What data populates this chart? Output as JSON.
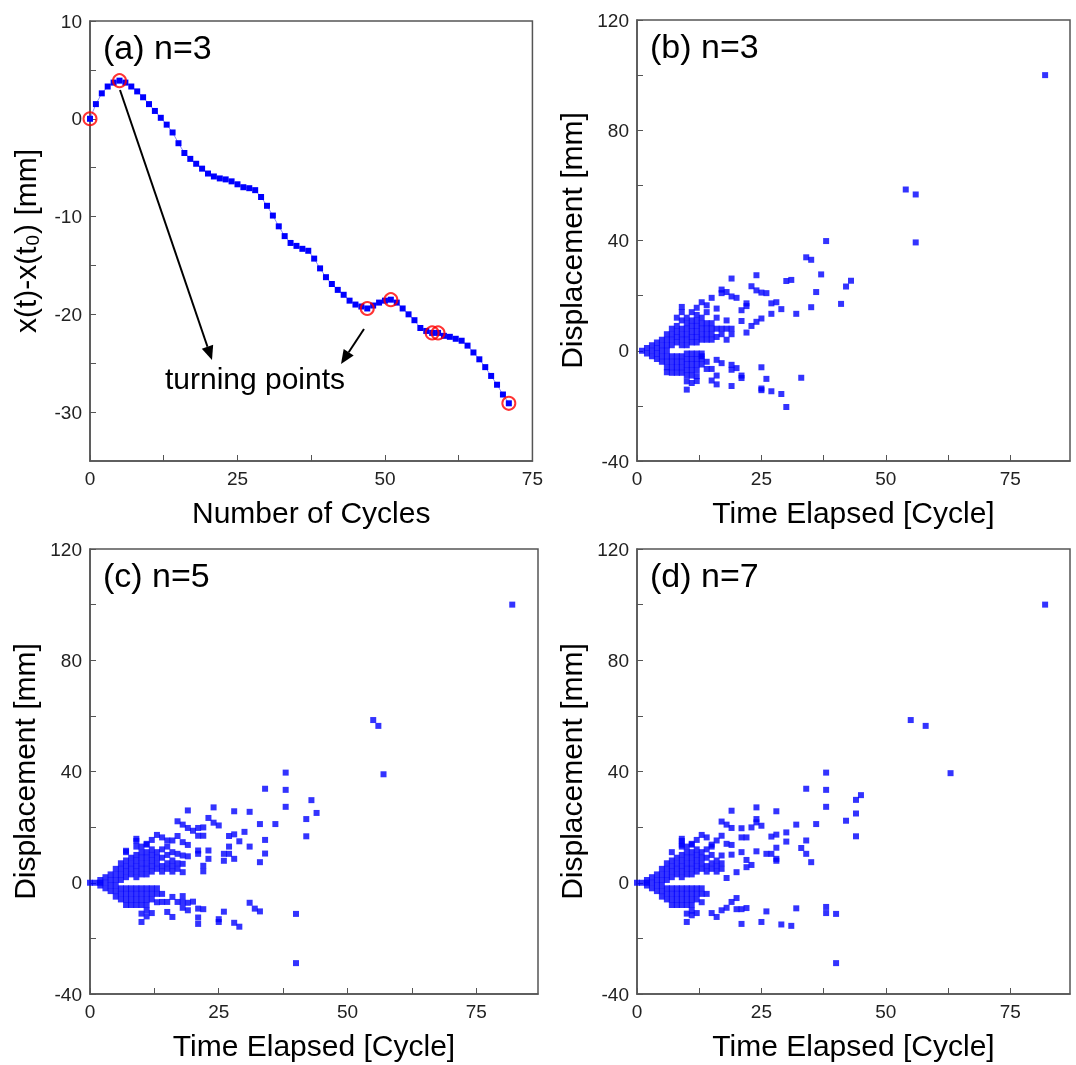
{
  "chart_data": [
    {
      "type": "line",
      "title": "(a) n=3",
      "xlabel": "Number of Cycles",
      "ylabel": "x(t)-x(t₀) [mm]",
      "xlim": [
        0,
        75
      ],
      "xticks": [
        0,
        {
          "value": 12.5,
          "label": null
        },
        25,
        {
          "value": 37.5,
          "label": null
        },
        50,
        {
          "value": 62.5,
          "label": null
        },
        75
      ],
      "ylim": [
        -35,
        10
      ],
      "yticks": [
        -30,
        {
          "value": -25,
          "label": null
        },
        -20,
        {
          "value": -15,
          "label": null
        },
        -10,
        {
          "value": -5,
          "label": null
        },
        0,
        {
          "value": 5,
          "label": null
        },
        10
      ],
      "marker": "square",
      "annotations": [
        "turning points"
      ],
      "series": [
        {
          "color": "#0000ff",
          "x": [
            0,
            1,
            2,
            3,
            4,
            5,
            6,
            7,
            8,
            9,
            10,
            11,
            12,
            13,
            14,
            15,
            16,
            17,
            18,
            19,
            20,
            21,
            22,
            23,
            24,
            25,
            26,
            27,
            28,
            29,
            30,
            31,
            32,
            33,
            34,
            35,
            36,
            37,
            38,
            39,
            40,
            41,
            42,
            43,
            44,
            45,
            46,
            47,
            48,
            49,
            50,
            51,
            52,
            53,
            54,
            55,
            56,
            57,
            58,
            59,
            60,
            61,
            62,
            63,
            64,
            65,
            66,
            67,
            68,
            69,
            70,
            71
          ],
          "values": [
            0,
            1.5,
            2.6,
            3.3,
            3.7,
            3.9,
            3.7,
            3.3,
            2.8,
            2.2,
            1.5,
            0.8,
            0.1,
            -0.6,
            -1.4,
            -2.5,
            -3.5,
            -4.1,
            -4.6,
            -5.1,
            -5.6,
            -5.9,
            -6.1,
            -6.2,
            -6.4,
            -6.7,
            -7,
            -7.1,
            -7.3,
            -8,
            -8.9,
            -9.9,
            -11,
            -12,
            -12.7,
            -13,
            -13.3,
            -13.5,
            -14.3,
            -15.3,
            -16.2,
            -16.9,
            -17.5,
            -18,
            -18.6,
            -19,
            -19.2,
            -19.4,
            -19.1,
            -18.8,
            -18.6,
            -18.5,
            -18.8,
            -19.4,
            -20,
            -20.6,
            -21.4,
            -21.7,
            -21.9,
            -21.9,
            -22.2,
            -22.3,
            -22.5,
            -22.7,
            -23.2,
            -23.9,
            -24.6,
            -25.4,
            -26.3,
            -27.2,
            -28.2,
            -29.1
          ]
        },
        {
          "type": "scatter",
          "color": "#ff0000",
          "marker": "circle",
          "x": [
            0,
            5,
            47,
            51,
            58,
            59,
            71
          ],
          "values": [
            0,
            3.9,
            -19.4,
            -18.5,
            -21.9,
            -21.9,
            -29.1
          ]
        }
      ]
    },
    {
      "type": "scatter",
      "title": "(b) n=3",
      "xlabel": "Time Elapsed [Cycle]",
      "ylabel": "Displacement [mm]",
      "xlim": [
        0,
        87
      ],
      "xticks": [
        0,
        {
          "value": 12.5,
          "label": null
        },
        25,
        {
          "value": 37.5,
          "label": null
        },
        50,
        {
          "value": 62.5,
          "label": null
        },
        75
      ],
      "ylim": [
        -40,
        120
      ],
      "yticks": [
        -40,
        {
          "value": -20,
          "label": null
        },
        0,
        {
          "value": 20,
          "label": null
        },
        40,
        {
          "value": 60,
          "label": null
        },
        80,
        {
          "value": 100,
          "label": null
        },
        120
      ],
      "marker": "square",
      "series": [
        {
          "color": "#0000ff",
          "x": [
            1,
            2,
            2,
            3,
            3,
            3,
            4,
            4,
            4,
            4,
            5,
            5,
            5,
            5,
            5,
            6,
            6,
            6,
            6,
            6,
            6,
            6,
            7,
            7,
            7,
            7,
            7,
            7,
            7,
            7,
            8,
            8,
            8,
            8,
            8,
            8,
            8,
            8,
            8,
            9,
            9,
            9,
            9,
            9,
            9,
            9,
            9,
            9,
            9,
            10,
            10,
            10,
            10,
            10,
            10,
            10,
            10,
            10,
            10,
            10,
            11,
            11,
            11,
            11,
            11,
            11,
            11,
            11,
            11,
            11,
            11,
            12,
            12,
            12,
            12,
            12,
            12,
            12,
            12,
            12,
            12,
            13,
            13,
            13,
            13,
            13,
            13,
            13,
            13,
            14,
            14,
            14,
            14,
            14,
            14,
            15,
            15,
            15,
            15,
            16,
            16,
            16,
            17,
            17,
            18,
            18,
            18,
            19,
            19,
            82,
            54,
            56,
            56,
            38,
            34,
            35,
            37,
            43,
            42,
            41,
            36,
            35,
            30,
            31,
            32,
            24,
            19,
            23,
            26,
            25,
            24,
            27,
            28,
            29,
            27,
            25,
            24,
            23,
            22,
            21,
            21,
            22,
            22,
            20,
            19,
            18,
            17,
            17,
            16,
            15,
            14,
            13,
            12,
            9,
            30,
            29,
            27,
            25,
            25,
            26,
            25,
            33,
            19,
            21,
            21,
            20,
            19,
            19,
            17,
            16,
            16,
            16,
            15,
            15,
            14,
            13,
            12,
            12,
            11,
            10,
            10,
            6
          ],
          "values": [
            0,
            1,
            -1,
            2,
            0,
            -2,
            3,
            1,
            -1,
            -3,
            4,
            2,
            0,
            -2,
            -4,
            6,
            4,
            2,
            0,
            -2,
            -4,
            -6,
            8,
            6,
            4,
            2,
            -2,
            -4,
            -6,
            -8,
            12,
            9,
            7,
            5,
            3,
            -2,
            -4,
            -6,
            -8,
            14,
            11,
            8,
            6,
            4,
            2,
            -2,
            -4,
            -6,
            -8,
            12,
            10,
            8,
            6,
            4,
            2,
            -1,
            -3,
            -5,
            -7,
            -9,
            14,
            11,
            9,
            7,
            5,
            3,
            -1,
            -3,
            -5,
            -7,
            -9,
            13,
            11,
            9,
            7,
            5,
            3,
            -1,
            -3,
            -5,
            -7,
            12,
            10,
            8,
            6,
            4,
            -1,
            -3,
            -5,
            14,
            10,
            8,
            6,
            4,
            -4,
            10,
            8,
            6,
            4,
            12,
            8,
            5,
            8,
            6,
            11,
            8,
            4,
            8,
            6,
            100,
            58.5,
            56.7,
            39.3,
            39.8,
            33.9,
            33,
            27.7,
            25.4,
            23.3,
            17,
            21.3,
            15.8,
            25.3,
            25.7,
            13.4,
            27.4,
            26.2,
            23.4,
            20.9,
            21.1,
            21.9,
            17.2,
            17.6,
            15.1,
            13.4,
            11.7,
            10.5,
            9,
            6.6,
            10.8,
            14.7,
            17.2,
            16.2,
            19.2,
            19.7,
            21.3,
            22.2,
            20.9,
            15.3,
            19.2,
            16.5,
            17.6,
            15.6,
            15.9,
            -20.4,
            -15.7,
            -14.7,
            -13.7,
            -14.3,
            -10.2,
            -6,
            -9.8,
            -12.8,
            -9,
            -9.9,
            -6.3,
            -5.1,
            -6.9,
            -4.5,
            -3.3,
            -12.2,
            -9,
            -6.6,
            -10.8,
            -6.6,
            -2,
            -9.2,
            -11,
            -11.7,
            -14.1,
            -11.1,
            -7.8
          ]
        }
      ]
    },
    {
      "type": "scatter",
      "title": "(c) n=5",
      "xlabel": "Time Elapsed [Cycle]",
      "ylabel": "Displacement [mm]",
      "xlim": [
        0,
        87
      ],
      "xticks": [
        0,
        {
          "value": 12.5,
          "label": null
        },
        25,
        {
          "value": 37.5,
          "label": null
        },
        50,
        {
          "value": 62.5,
          "label": null
        },
        75
      ],
      "ylim": [
        -40,
        120
      ],
      "yticks": [
        -40,
        {
          "value": -20,
          "label": null
        },
        0,
        {
          "value": 20,
          "label": null
        },
        40,
        {
          "value": 60,
          "label": null
        },
        80,
        {
          "value": 100,
          "label": null
        },
        120
      ],
      "marker": "square",
      "series": [
        {
          "color": "#0000ff",
          "x": [
            0,
            1,
            2,
            2,
            2,
            3,
            3,
            3,
            4,
            4,
            4,
            4,
            5,
            5,
            5,
            5,
            5,
            5,
            6,
            6,
            6,
            6,
            6,
            6,
            6,
            7,
            7,
            7,
            7,
            7,
            7,
            7,
            7,
            7,
            8,
            8,
            8,
            8,
            8,
            8,
            8,
            8,
            9,
            9,
            9,
            9,
            9,
            9,
            9,
            9,
            9,
            9,
            9,
            10,
            10,
            10,
            10,
            10,
            10,
            10,
            10,
            10,
            10,
            11,
            11,
            11,
            11,
            11,
            11,
            11,
            11,
            11,
            11,
            11,
            12,
            12,
            12,
            12,
            12,
            12,
            12,
            12,
            13,
            13,
            13,
            13,
            13,
            13,
            13,
            14,
            14,
            14,
            14,
            14,
            15,
            15,
            15,
            15,
            16,
            16,
            16,
            17,
            17,
            82,
            55,
            56,
            57,
            38,
            34,
            38,
            38,
            43,
            44,
            42,
            42,
            36,
            33,
            34,
            34,
            33,
            31,
            31,
            30,
            28,
            28,
            27,
            29,
            27,
            27,
            26,
            26,
            28,
            24,
            23,
            24,
            25,
            19,
            17,
            18,
            19,
            20,
            21,
            22,
            21,
            22,
            23,
            23,
            21,
            21,
            22,
            22,
            17,
            18,
            19,
            19,
            18,
            17,
            18,
            18,
            16,
            16,
            15,
            14,
            13,
            12,
            11,
            9,
            7,
            40,
            40,
            29,
            28,
            25,
            25,
            26,
            31,
            32,
            33,
            21,
            21,
            21,
            22,
            19,
            20,
            19,
            18,
            18,
            18,
            17,
            16,
            16,
            15,
            15,
            14,
            12,
            11,
            10,
            10
          ],
          "values": [
            0,
            0,
            1,
            0,
            -1,
            2,
            0,
            -2,
            3,
            1,
            -1,
            -3,
            5,
            3,
            1,
            -1,
            -3,
            -5,
            7,
            5,
            3,
            1,
            -2,
            -4,
            -6,
            11,
            8,
            6,
            4,
            2,
            -2,
            -4,
            -6,
            -8,
            9,
            7,
            5,
            3,
            -2,
            -4,
            -6,
            -8,
            15,
            13,
            10,
            8,
            6,
            4,
            2,
            -2,
            -4,
            -6,
            -8,
            13,
            11,
            9,
            7,
            5,
            3,
            -2,
            -4,
            -6,
            -8,
            14,
            11,
            9,
            7,
            5,
            3,
            -2,
            -4,
            -6,
            -8,
            -10,
            12,
            10,
            8,
            6,
            4,
            -2,
            -4,
            -6,
            11,
            9,
            7,
            5,
            -2,
            -4,
            -7,
            12,
            9,
            6,
            4,
            -4,
            13,
            10,
            7,
            5,
            8,
            6,
            4,
            7,
            5,
            100,
            58.5,
            56.4,
            39,
            39.6,
            33.8,
            33.4,
            27.3,
            29.7,
            25.1,
            22.9,
            16.7,
            21.1,
            21.1,
            15.4,
            10.5,
            7.4,
            25.5,
            13,
            18.3,
            25.7,
            17.4,
            16.8,
            14.9,
            13,
            10.4,
            10.4,
            7.9,
            8.6,
            27.1,
            23.3,
            21.6,
            20.6,
            26,
            22.1,
            20.9,
            19.7,
            18.7,
            19.7,
            19.9,
            16.9,
            16.9,
            11.6,
            8.6,
            11.6,
            10.4,
            6.1,
            4.1,
            16.8,
            14.6,
            13.6,
            9.5,
            9.8,
            10.4,
            6.8,
            3.8,
            11,
            15.2,
            15.2,
            16.3,
            17.2,
            15.4,
            13.7,
            15.8,
            11.5,
            -28.9,
            -11.2,
            -15.8,
            -14.4,
            -14.1,
            -13.1,
            -10.4,
            -7.2,
            -9.3,
            -10.3,
            -14.8,
            -12.5,
            -9.3,
            -9.5,
            -9.9,
            -6.8,
            -7.2,
            -9,
            -4.8,
            -6.9,
            -6.9,
            -5.1,
            -12.3,
            -10.5,
            -6.9,
            -6.9,
            -10.9,
            -12.1,
            -14.1,
            -11.1
          ]
        }
      ]
    },
    {
      "type": "scatter",
      "title": "(d) n=7",
      "xlabel": "Time Elapsed [Cycle]",
      "ylabel": "Displacement [mm]",
      "xlim": [
        0,
        87
      ],
      "xticks": [
        0,
        {
          "value": 12.5,
          "label": null
        },
        25,
        {
          "value": 37.5,
          "label": null
        },
        50,
        {
          "value": 62.5,
          "label": null
        },
        75
      ],
      "ylim": [
        -40,
        120
      ],
      "yticks": [
        -40,
        {
          "value": -20,
          "label": null
        },
        0,
        {
          "value": 20,
          "label": null
        },
        40,
        {
          "value": 60,
          "label": null
        },
        80,
        {
          "value": 100,
          "label": null
        },
        120
      ],
      "marker": "square",
      "series": [
        {
          "color": "#0000ff",
          "x": [
            0,
            1,
            2,
            2,
            2,
            3,
            3,
            3,
            4,
            4,
            4,
            4,
            5,
            5,
            5,
            5,
            5,
            5,
            6,
            6,
            6,
            6,
            6,
            6,
            6,
            7,
            7,
            7,
            7,
            7,
            7,
            7,
            7,
            7,
            8,
            8,
            8,
            8,
            8,
            8,
            8,
            8,
            9,
            9,
            9,
            9,
            9,
            9,
            9,
            9,
            9,
            9,
            9,
            10,
            10,
            10,
            10,
            10,
            10,
            10,
            10,
            10,
            10,
            11,
            11,
            11,
            11,
            11,
            11,
            11,
            11,
            11,
            11,
            11,
            12,
            12,
            12,
            12,
            12,
            12,
            12,
            12,
            13,
            13,
            13,
            13,
            13,
            13,
            13,
            14,
            14,
            14,
            14,
            14,
            15,
            15,
            15,
            15,
            16,
            16,
            16,
            17,
            17,
            82,
            55,
            58,
            63,
            38,
            34,
            38,
            38,
            44,
            45,
            44,
            42,
            44,
            36,
            32,
            30,
            30,
            34,
            34,
            33,
            35,
            28,
            28,
            28,
            28,
            28,
            27,
            27,
            26,
            24,
            24,
            24,
            25,
            23,
            24,
            23,
            22,
            22,
            22,
            21,
            21,
            21,
            20,
            19,
            19,
            19,
            19,
            18,
            17,
            17,
            18,
            17,
            18,
            16,
            15,
            14,
            13,
            12,
            11,
            9,
            9,
            40,
            40,
            38,
            38,
            32,
            31,
            29,
            25,
            26,
            21,
            22,
            20,
            21,
            20,
            19,
            18,
            16,
            15,
            17,
            12,
            11,
            10,
            10
          ],
          "values": [
            0,
            0,
            1,
            0,
            -1,
            2,
            0,
            -2,
            3,
            1,
            -1,
            -3,
            5,
            3,
            1,
            -1,
            -3,
            -5,
            7,
            5,
            3,
            1,
            -2,
            -4,
            -6,
            11,
            8,
            6,
            4,
            2,
            -2,
            -4,
            -6,
            -8,
            9,
            7,
            5,
            3,
            -2,
            -4,
            -6,
            -8,
            15,
            13,
            10,
            8,
            6,
            4,
            2,
            -2,
            -4,
            -6,
            -8,
            13,
            11,
            9,
            7,
            5,
            3,
            -2,
            -4,
            -6,
            -8,
            14,
            11,
            9,
            7,
            5,
            3,
            -2,
            -4,
            -6,
            -8,
            -10,
            12,
            10,
            8,
            6,
            4,
            -2,
            -4,
            -6,
            11,
            9,
            7,
            5,
            -2,
            -4,
            -7,
            12,
            9,
            6,
            4,
            -4,
            13,
            10,
            7,
            5,
            8,
            6,
            4,
            7,
            5,
            100,
            58.5,
            56.4,
            39.4,
            39.6,
            33.8,
            33.4,
            27.3,
            29.8,
            31.5,
            24.9,
            22.3,
            16.7,
            21.1,
            20.9,
            18.1,
            14.8,
            15.2,
            10.4,
            12.5,
            7.4,
            25.7,
            17.3,
            12.6,
            8.6,
            7.9,
            16.6,
            10.4,
            10.4,
            27.1,
            22.9,
            21.7,
            20.5,
            19.9,
            11.3,
            6.4,
            8.2,
            5.6,
            16.3,
            19.6,
            16.3,
            11,
            3.8,
            25.9,
            19.7,
            13.6,
            10.1,
            20.9,
            22,
            16.9,
            14,
            9.8,
            1.7,
            15.2,
            13.7,
            16.3,
            17.2,
            15.4,
            13.7,
            15.8,
            13.7,
            -28.9,
            -11.2,
            -8.7,
            -10.9,
            -9.2,
            -15.5,
            -15,
            -14.1,
            -10.3,
            -14.8,
            -9.1,
            -9.5,
            -9.5,
            -5.5,
            -6.9,
            -9,
            -12.3,
            -10.9,
            -9.9,
            -10.9,
            -11.7,
            -14.1,
            -11.1
          ]
        }
      ]
    }
  ]
}
